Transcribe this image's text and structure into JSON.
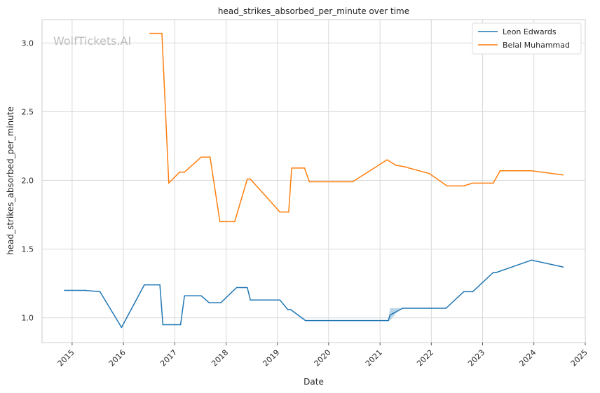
{
  "chart_data": {
    "type": "line",
    "title": "head_strikes_absorbed_per_minute over time",
    "xlabel": "Date",
    "ylabel": "head_strikes_absorbed_per_minute",
    "watermark": "WolfTickets.AI",
    "xlim": [
      "2014-06-01",
      "2025-01-01"
    ],
    "ylim": [
      0.82,
      3.17
    ],
    "x_ticks": [
      "2015",
      "2016",
      "2017",
      "2018",
      "2019",
      "2020",
      "2021",
      "2022",
      "2023",
      "2024",
      "2025"
    ],
    "y_ticks": [
      "1.0",
      "1.5",
      "2.0",
      "2.5",
      "3.0"
    ],
    "grid": true,
    "legend_position": "top-right",
    "colors": {
      "Leon Edwards": "#1f77b4",
      "Belal Muhammad": "#ff7f0e",
      "band": "#a6c8e0",
      "grid": "#d9d9d9",
      "axes": "#cccccc"
    },
    "series": [
      {
        "name": "Leon Edwards",
        "x": [
          "2014-11-08",
          "2015-04-04",
          "2015-07-18",
          "2015-12-19",
          "2016-05-29",
          "2016-09-17",
          "2016-10-08",
          "2017-02-11",
          "2017-03-11",
          "2017-07-08",
          "2017-09-02",
          "2017-11-25",
          "2018-03-17",
          "2018-06-01",
          "2018-06-23",
          "2019-01-19",
          "2019-03-16",
          "2019-04-06",
          "2019-07-20",
          "2021-03-01",
          "2021-03-13",
          "2021-06-12",
          "2021-12-18",
          "2022-04-16",
          "2022-08-20",
          "2022-10-22",
          "2023-03-18",
          "2023-04-08",
          "2023-12-16",
          "2024-07-27"
        ],
        "values": [
          1.2,
          1.2,
          1.19,
          0.93,
          1.24,
          1.24,
          0.95,
          0.95,
          1.16,
          1.16,
          1.11,
          1.11,
          1.22,
          1.22,
          1.13,
          1.13,
          1.06,
          1.06,
          0.98,
          0.98,
          1.02,
          1.07,
          1.07,
          1.07,
          1.19,
          1.19,
          1.33,
          1.33,
          1.42,
          1.37
        ],
        "band": {
          "x": [
            "2021-03-01",
            "2021-03-13",
            "2021-05-15",
            "2021-06-12"
          ],
          "low": [
            0.98,
            0.98,
            1.06,
            1.07
          ],
          "high": [
            0.98,
            1.07,
            1.07,
            1.07
          ]
        }
      },
      {
        "name": "Belal Muhammad",
        "x": [
          "2016-07-08",
          "2016-10-01",
          "2016-11-19",
          "2017-02-04",
          "2017-03-11",
          "2017-07-08",
          "2017-09-09",
          "2017-11-18",
          "2018-03-03",
          "2018-06-01",
          "2018-06-23",
          "2019-01-19",
          "2019-03-23",
          "2019-04-13",
          "2019-07-13",
          "2019-08-17",
          "2020-06-20",
          "2021-02-20",
          "2021-04-24",
          "2021-06-19",
          "2021-12-18",
          "2022-04-23",
          "2022-08-20",
          "2022-10-22",
          "2023-03-18",
          "2023-05-06",
          "2023-12-16",
          "2024-07-27"
        ],
        "values": [
          3.07,
          3.07,
          1.98,
          2.06,
          2.06,
          2.17,
          2.17,
          1.7,
          1.7,
          2.01,
          2.01,
          1.77,
          1.77,
          2.09,
          2.09,
          1.99,
          1.99,
          2.15,
          2.11,
          2.1,
          2.05,
          1.96,
          1.96,
          1.98,
          1.98,
          2.07,
          2.07,
          2.04
        ]
      }
    ]
  }
}
